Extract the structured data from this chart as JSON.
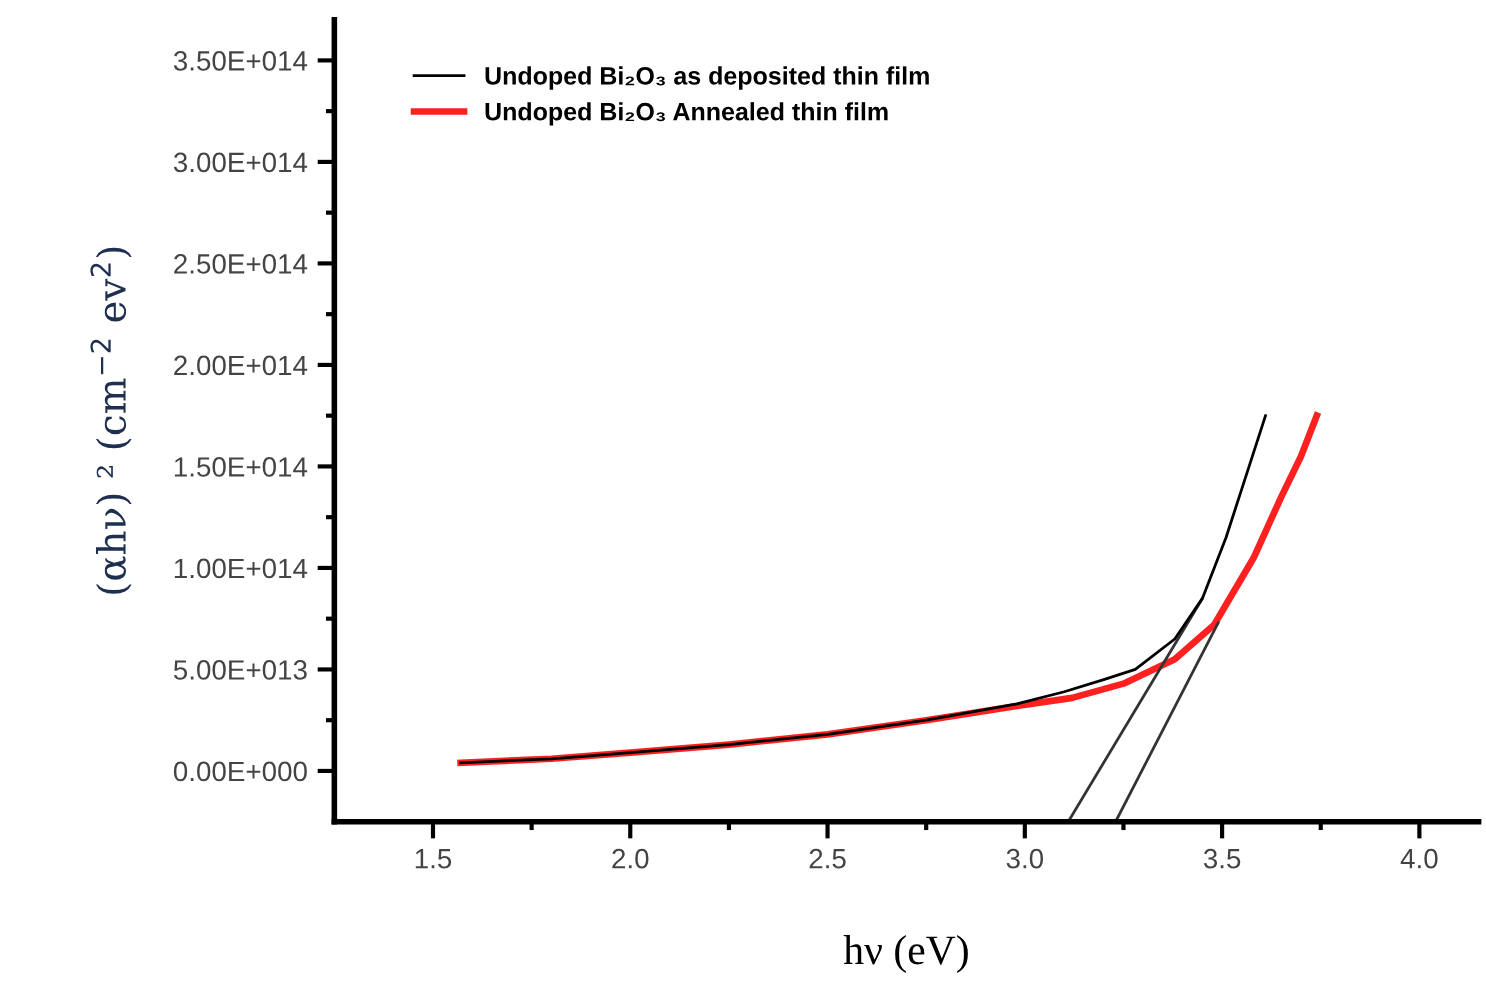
{
  "chart_data": {
    "type": "line",
    "xlabel": "hν (eV)",
    "ylabel": "(αhν) ² (cm$^{−2}$ ev$^{2}$)",
    "xlim": [
      1.25,
      4.15
    ],
    "ylim": [
      -25000000000000.0,
      370000000000000.0
    ],
    "xticks": [
      1.5,
      {
        "value": 2,
        "label": "2.0"
      },
      2.5,
      {
        "value": 3,
        "label": "3.0"
      },
      3.5,
      {
        "value": 4,
        "label": "4.0"
      }
    ],
    "yticks": [
      {
        "value": 0,
        "label": "0.00E+000"
      },
      {
        "value": 50000000000000.0,
        "label": "5.00E+013"
      },
      {
        "value": 100000000000000.0,
        "label": "1.00E+014"
      },
      {
        "value": 150000000000000.0,
        "label": "1.50E+014"
      },
      {
        "value": 200000000000000.0,
        "label": "2.00E+014"
      },
      {
        "value": 250000000000000.0,
        "label": "2.50E+014"
      },
      {
        "value": 300000000000000.0,
        "label": "3.00E+014"
      },
      {
        "value": 350000000000000.0,
        "label": "3.50E+014"
      }
    ],
    "legend": "top left",
    "grid": false,
    "series": [
      {
        "name": "Undoped Bi₂O₃ as deposited thin film",
        "color": "#000000",
        "x": [
          1.57,
          1.8,
          2.0,
          2.25,
          2.5,
          2.75,
          2.98,
          3.1,
          3.2,
          3.28,
          3.38,
          3.45,
          3.51,
          3.56,
          3.61
        ],
        "values": [
          4000000000000.0,
          6000000000000.0,
          9000000000000.0,
          13000000000000.0,
          18000000000000.0,
          25000000000000.0,
          33000000000000.0,
          39000000000000.0,
          45000000000000.0,
          50000000000000.0,
          65000000000000.0,
          85000000000000.0,
          115000000000000.0,
          145000000000000.0,
          175000000000000.0
        ]
      },
      {
        "name": "Undoped Bi₂O₃ Annealed thin film",
        "color": "#ff2020",
        "x": [
          1.57,
          1.8,
          2.0,
          2.25,
          2.5,
          2.75,
          2.98,
          3.12,
          3.25,
          3.38,
          3.48,
          3.58,
          3.65,
          3.7,
          3.74
        ],
        "values": [
          4000000000000.0,
          6000000000000.0,
          9000000000000.0,
          13000000000000.0,
          18000000000000.0,
          25000000000000.0,
          32000000000000.0,
          36000000000000.0,
          43000000000000.0,
          55000000000000.0,
          72000000000000.0,
          105000000000000.0,
          135000000000000.0,
          155000000000000.0,
          175000000000000.0
        ]
      },
      {
        "type": "line",
        "color": "#333333",
        "x": [
          3.11,
          3.45
        ],
        "values": [
          -25000000000000.0,
          85000000000000.0
        ]
      },
      {
        "type": "line",
        "color": "#333333",
        "x": [
          3.23,
          3.49
        ],
        "values": [
          -25000000000000.0,
          73000000000000.0
        ]
      }
    ]
  }
}
